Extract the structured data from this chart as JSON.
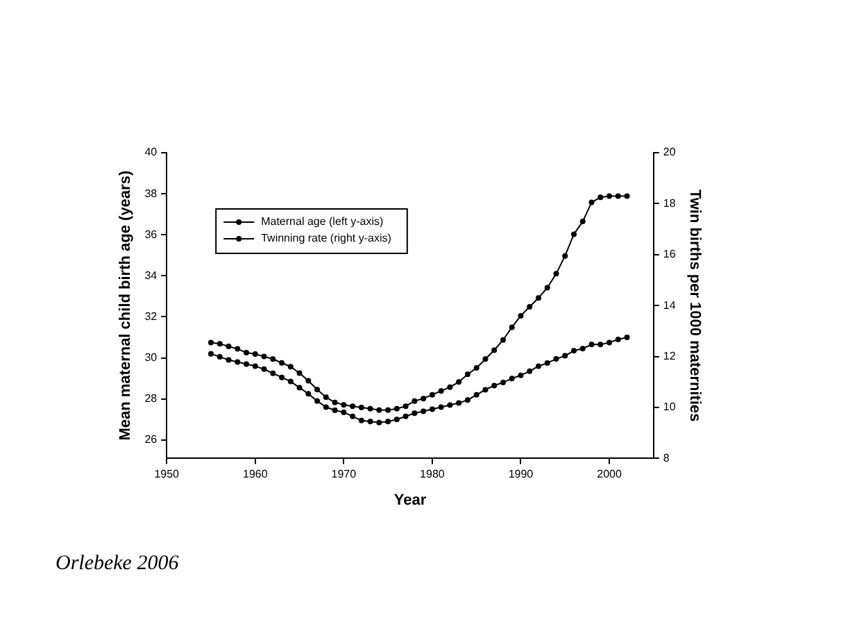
{
  "chart_data": {
    "type": "line",
    "xlabel": "Year",
    "ylabel": "Mean maternal child birth age (years)",
    "y2label": "Twin births per 1000 maternities",
    "x": [
      1955,
      1956,
      1957,
      1958,
      1959,
      1960,
      1961,
      1962,
      1963,
      1964,
      1965,
      1966,
      1967,
      1968,
      1969,
      1970,
      1971,
      1972,
      1973,
      1974,
      1975,
      1976,
      1977,
      1978,
      1979,
      1980,
      1981,
      1982,
      1983,
      1984,
      1985,
      1986,
      1987,
      1988,
      1989,
      1990,
      1991,
      1992,
      1993,
      1994,
      1995,
      1996,
      1997,
      1998,
      1999,
      2000,
      2001,
      2002
    ],
    "series": [
      {
        "name": "Maternal age (left y-axis)",
        "color": "#000000",
        "values": [
          30.2,
          30.05,
          29.9,
          29.8,
          29.7,
          29.6,
          29.45,
          29.25,
          29.05,
          28.85,
          28.55,
          28.25,
          27.9,
          27.6,
          27.45,
          27.35,
          27.15,
          26.95,
          26.9,
          26.85,
          26.9,
          27.0,
          27.15,
          27.3,
          27.4,
          27.5,
          27.6,
          27.7,
          27.8,
          27.95,
          28.2,
          28.45,
          28.65,
          28.8,
          29.0,
          29.15,
          29.35,
          29.6,
          29.75,
          29.95,
          30.1,
          30.35,
          30.45,
          30.65,
          30.65,
          30.75,
          30.9,
          31.0
        ]
      },
      {
        "name": "Twinning rate (right y-axis)",
        "color": "#000000",
        "axis": "y2",
        "values": [
          12.55,
          12.5,
          12.4,
          12.3,
          12.15,
          12.1,
          12.0,
          11.9,
          11.75,
          11.6,
          11.35,
          11.05,
          10.7,
          10.4,
          10.2,
          10.1,
          10.05,
          10.0,
          9.95,
          9.9,
          9.9,
          9.95,
          10.05,
          10.25,
          10.35,
          10.5,
          10.65,
          10.8,
          11.0,
          11.3,
          11.55,
          11.9,
          12.25,
          12.65,
          13.15,
          13.6,
          13.95,
          14.3,
          14.7,
          15.25,
          15.95,
          16.8,
          17.3,
          18.05,
          18.25,
          18.3,
          18.3,
          18.3
        ]
      }
    ],
    "xlim": [
      1950,
      2005
    ],
    "xticks": [
      1950,
      1960,
      1970,
      1980,
      1990,
      2000
    ],
    "ylim": [
      25.1,
      40
    ],
    "yticks": [
      26,
      28,
      30,
      32,
      34,
      36,
      38,
      40
    ],
    "y2lim": [
      8,
      20
    ],
    "y2ticks": [
      8,
      10,
      12,
      14,
      16,
      18,
      20
    ],
    "grid": false,
    "legend": "top left",
    "marker": "circle",
    "line_style": "solid",
    "annotations": [
      "Orlebeke 2006"
    ]
  }
}
